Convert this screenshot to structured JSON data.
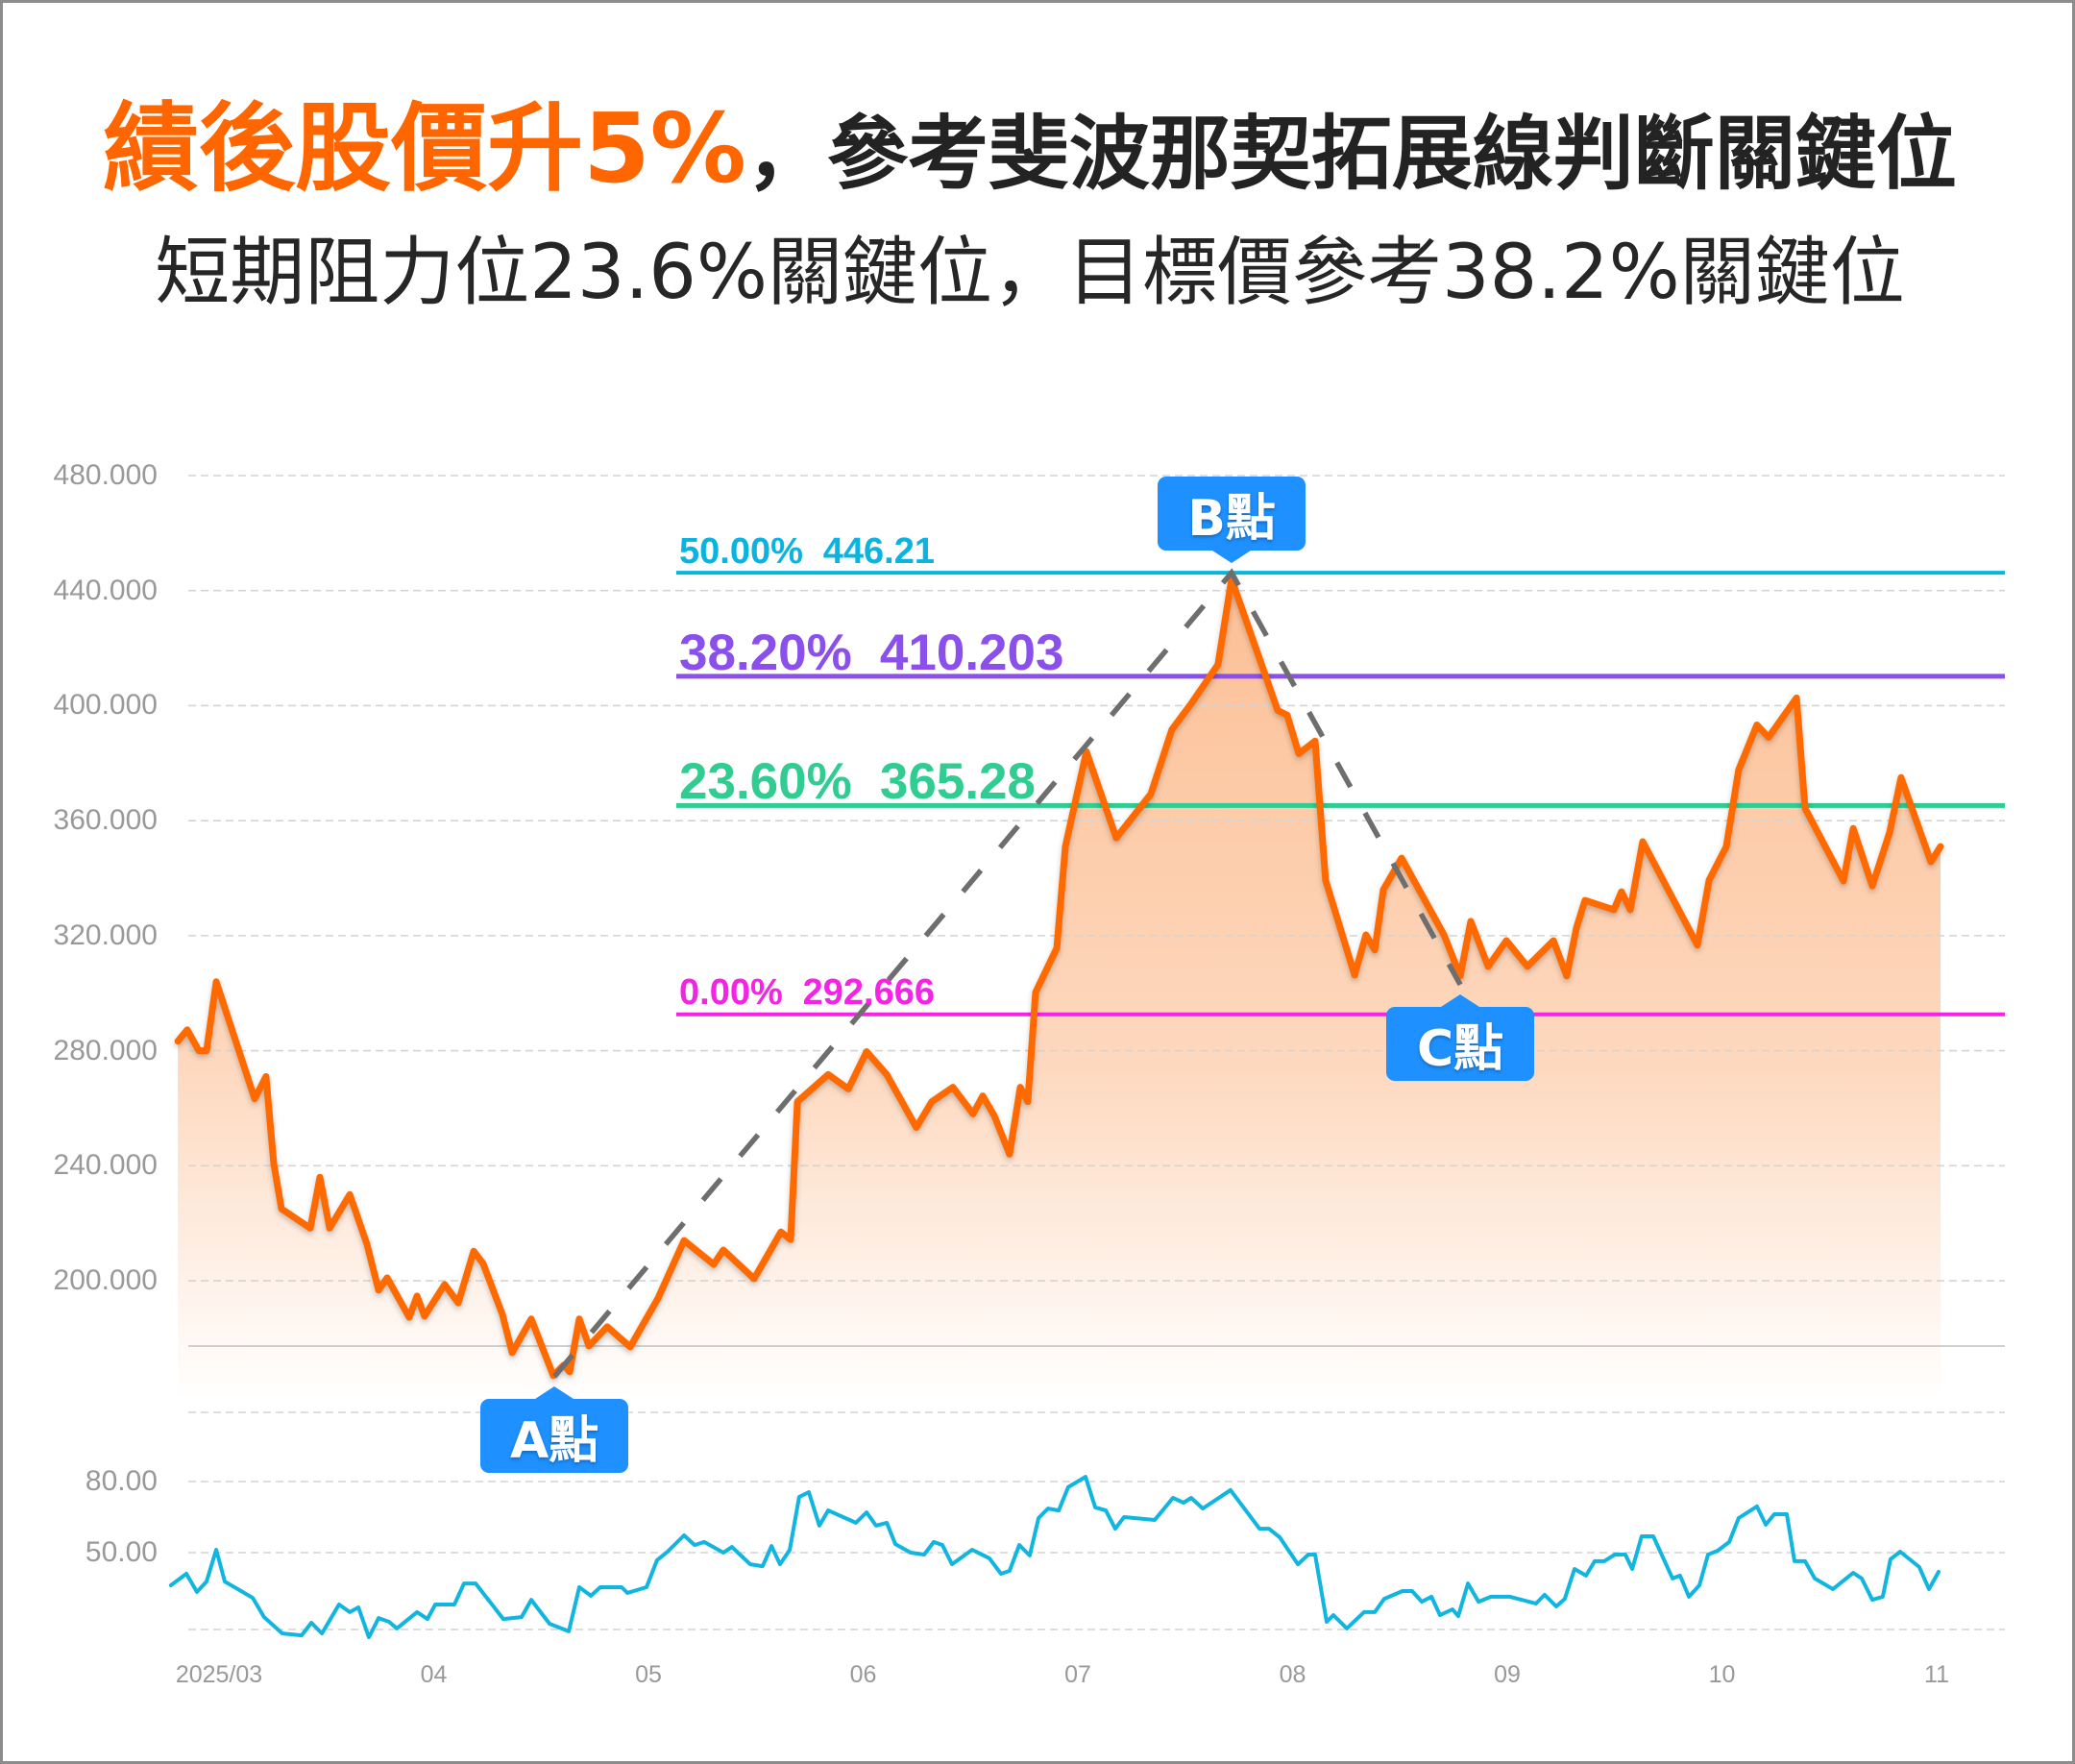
{
  "header": {
    "headline_accent": "績後股價升5%",
    "headline_main": "，參考斐波那契拓展線判斷關鍵位",
    "subheadline": "短期阻力位23.6%關鍵位，目標價參考38.2%關鍵位"
  },
  "colors": {
    "accent": "#FF6600",
    "text": "#232323",
    "area_fill": "#FA8A3C",
    "marker_bg": "#1E90FF",
    "marker_text": "#FFFFFF",
    "grid": "#D4D4D4",
    "axis_text": "#999999"
  },
  "chart_data": {
    "type": "line",
    "title": "績後股價升5%，參考斐波那契拓展線判斷關鍵位",
    "subtitle": "短期阻力位23.6%關鍵位，目標價參考38.2%關鍵位",
    "xlabel": "",
    "ylabel": "",
    "grid": true,
    "legend": "none",
    "ylim": [
      162,
      480
    ],
    "x_axis": {
      "labels": [
        "2025/03",
        "04",
        "05",
        "06",
        "07",
        "08",
        "09",
        "10",
        "11"
      ],
      "positions": [
        0,
        1,
        2,
        3,
        4,
        5,
        6,
        7,
        8
      ]
    },
    "y_axis": {
      "labels": [
        "480.000",
        "440.000",
        "400.000",
        "360.000",
        "320.000",
        "280.000",
        "240.000",
        "200.000"
      ],
      "values": [
        480,
        440,
        400,
        360,
        320,
        280,
        240,
        200
      ]
    },
    "price_series": {
      "color": "#FF6A00",
      "points": [
        [
          -0.192,
          283.3
        ],
        [
          -0.148,
          287.3
        ],
        [
          -0.094,
          280.0
        ],
        [
          -0.058,
          280.0
        ],
        [
          -0.013,
          304.0
        ],
        [
          0.166,
          263.3
        ],
        [
          0.219,
          271.0
        ],
        [
          0.255,
          240.7
        ],
        [
          0.291,
          225.0
        ],
        [
          0.425,
          218.3
        ],
        [
          0.47,
          236.0
        ],
        [
          0.515,
          218.3
        ],
        [
          0.609,
          230.0
        ],
        [
          0.689,
          212.7
        ],
        [
          0.743,
          196.7
        ],
        [
          0.783,
          201.0
        ],
        [
          0.886,
          187.3
        ],
        [
          0.922,
          194.7
        ],
        [
          0.957,
          187.7
        ],
        [
          1.051,
          198.7
        ],
        [
          1.114,
          192.3
        ],
        [
          1.186,
          210.3
        ],
        [
          1.23,
          206.0
        ],
        [
          1.32,
          188.3
        ],
        [
          1.365,
          175.0
        ],
        [
          1.454,
          186.7
        ],
        [
          1.557,
          167.0
        ],
        [
          1.606,
          170.7
        ],
        [
          1.633,
          168.3
        ],
        [
          1.678,
          186.7
        ],
        [
          1.723,
          177.3
        ],
        [
          1.808,
          184.0
        ],
        [
          1.915,
          177.0
        ],
        [
          2.045,
          194.0
        ],
        [
          2.166,
          214.0
        ],
        [
          2.304,
          205.7
        ],
        [
          2.349,
          210.7
        ],
        [
          2.492,
          200.7
        ],
        [
          2.617,
          217.0
        ],
        [
          2.662,
          214.3
        ],
        [
          2.694,
          262.3
        ],
        [
          2.837,
          271.7
        ],
        [
          2.931,
          266.7
        ],
        [
          3.016,
          279.7
        ],
        [
          3.11,
          271.7
        ],
        [
          3.248,
          253.3
        ],
        [
          3.32,
          262.3
        ],
        [
          3.418,
          267.3
        ],
        [
          3.512,
          258.0
        ],
        [
          3.557,
          264.3
        ],
        [
          3.611,
          257.3
        ],
        [
          3.682,
          244.0
        ],
        [
          3.732,
          267.3
        ],
        [
          3.767,
          262.3
        ],
        [
          3.803,
          300.3
        ],
        [
          3.902,
          315.7
        ],
        [
          3.942,
          351.0
        ],
        [
          4.04,
          384.0
        ],
        [
          4.179,
          354.0
        ],
        [
          4.34,
          369.3
        ],
        [
          4.438,
          391.7
        ],
        [
          4.528,
          400.7
        ],
        [
          4.653,
          414.3
        ],
        [
          4.716,
          444.0
        ],
        [
          4.931,
          398.3
        ],
        [
          4.975,
          396.7
        ],
        [
          5.029,
          383.3
        ],
        [
          5.105,
          387.7
        ],
        [
          5.154,
          339.3
        ],
        [
          5.289,
          306.3
        ],
        [
          5.342,
          320.3
        ],
        [
          5.383,
          315.0
        ],
        [
          5.423,
          336.0
        ],
        [
          5.508,
          347.0
        ],
        [
          5.705,
          320.3
        ],
        [
          5.781,
          306.0
        ],
        [
          5.83,
          325.0
        ],
        [
          5.911,
          309.3
        ],
        [
          5.996,
          318.3
        ],
        [
          6.094,
          309.3
        ],
        [
          6.215,
          318.3
        ],
        [
          6.277,
          306.0
        ],
        [
          6.322,
          322.7
        ],
        [
          6.362,
          332.3
        ],
        [
          6.497,
          329.0
        ],
        [
          6.532,
          335.3
        ],
        [
          6.573,
          329.0
        ],
        [
          6.631,
          352.7
        ],
        [
          6.886,
          316.7
        ],
        [
          6.94,
          339.3
        ],
        [
          7.02,
          351.0
        ],
        [
          7.078,
          377.7
        ],
        [
          7.163,
          393.3
        ],
        [
          7.217,
          389.0
        ],
        [
          7.347,
          402.7
        ],
        [
          7.387,
          364.3
        ],
        [
          7.566,
          339.0
        ],
        [
          7.611,
          357.3
        ],
        [
          7.7,
          337.3
        ],
        [
          7.781,
          356.0
        ],
        [
          7.834,
          375.0
        ],
        [
          7.973,
          345.7
        ],
        [
          8.018,
          351.0
        ]
      ]
    },
    "indicator_series": {
      "color": "#10B5E0",
      "y_axis": {
        "labels": [
          "80.00",
          "50.00"
        ],
        "values": [
          80,
          50
        ]
      },
      "points": [
        [
          -0.224,
          36.2
        ],
        [
          -0.152,
          41.1
        ],
        [
          -0.103,
          33.4
        ],
        [
          -0.058,
          37.8
        ],
        [
          -0.013,
          51.2
        ],
        [
          0.027,
          37.8
        ],
        [
          0.157,
          30.9
        ],
        [
          0.21,
          22.8
        ],
        [
          0.295,
          15.9
        ],
        [
          0.385,
          15.1
        ],
        [
          0.43,
          20.4
        ],
        [
          0.479,
          15.9
        ],
        [
          0.559,
          28.1
        ],
        [
          0.609,
          24.9
        ],
        [
          0.649,
          26.9
        ],
        [
          0.698,
          14.3
        ],
        [
          0.743,
          22.4
        ],
        [
          0.792,
          20.8
        ],
        [
          0.828,
          18.0
        ],
        [
          0.922,
          24.9
        ],
        [
          0.971,
          22.0
        ],
        [
          1.007,
          28.1
        ],
        [
          1.096,
          28.1
        ],
        [
          1.141,
          37.0
        ],
        [
          1.195,
          37.0
        ],
        [
          1.324,
          22.0
        ],
        [
          1.409,
          22.8
        ],
        [
          1.454,
          30.1
        ],
        [
          1.539,
          20.0
        ],
        [
          1.629,
          16.8
        ],
        [
          1.678,
          35.4
        ],
        [
          1.732,
          31.8
        ],
        [
          1.776,
          35.4
        ],
        [
          1.875,
          35.4
        ],
        [
          1.902,
          33.0
        ],
        [
          1.991,
          35.4
        ],
        [
          2.04,
          46.8
        ],
        [
          2.089,
          50.4
        ],
        [
          2.166,
          57.3
        ],
        [
          2.215,
          53.2
        ],
        [
          2.26,
          54.5
        ],
        [
          2.349,
          50.0
        ],
        [
          2.389,
          52.4
        ],
        [
          2.474,
          45.1
        ],
        [
          2.532,
          44.3
        ],
        [
          2.573,
          52.8
        ],
        [
          2.613,
          45.1
        ],
        [
          2.658,
          51.2
        ],
        [
          2.702,
          73.5
        ],
        [
          2.747,
          75.5
        ],
        [
          2.796,
          61.4
        ],
        [
          2.837,
          67.8
        ],
        [
          2.966,
          62.6
        ],
        [
          3.016,
          67.0
        ],
        [
          3.06,
          61.4
        ],
        [
          3.11,
          62.6
        ],
        [
          3.15,
          53.6
        ],
        [
          3.221,
          50.0
        ],
        [
          3.284,
          49.2
        ],
        [
          3.329,
          54.5
        ],
        [
          3.369,
          53.2
        ],
        [
          3.414,
          45.1
        ],
        [
          3.508,
          51.2
        ],
        [
          3.588,
          47.6
        ],
        [
          3.642,
          41.1
        ],
        [
          3.682,
          42.3
        ],
        [
          3.727,
          53.2
        ],
        [
          3.776,
          48.8
        ],
        [
          3.817,
          64.6
        ],
        [
          3.861,
          68.6
        ],
        [
          3.911,
          67.8
        ],
        [
          3.955,
          77.6
        ],
        [
          4.036,
          82.0
        ],
        [
          4.081,
          69.1
        ],
        [
          4.13,
          67.8
        ],
        [
          4.174,
          60.1
        ],
        [
          4.215,
          65.0
        ],
        [
          4.358,
          63.8
        ],
        [
          4.443,
          73.1
        ],
        [
          4.492,
          71.1
        ],
        [
          4.528,
          73.1
        ],
        [
          4.582,
          68.6
        ],
        [
          4.711,
          76.4
        ],
        [
          4.846,
          60.1
        ],
        [
          4.89,
          60.1
        ],
        [
          4.94,
          56.5
        ],
        [
          5.025,
          45.1
        ],
        [
          5.074,
          49.2
        ],
        [
          5.105,
          49.2
        ],
        [
          5.159,
          20.8
        ],
        [
          5.19,
          23.6
        ],
        [
          5.253,
          18.0
        ],
        [
          5.333,
          24.9
        ],
        [
          5.383,
          24.9
        ],
        [
          5.427,
          30.5
        ],
        [
          5.512,
          33.8
        ],
        [
          5.557,
          33.8
        ],
        [
          5.602,
          29.3
        ],
        [
          5.647,
          31.4
        ],
        [
          5.687,
          23.6
        ],
        [
          5.745,
          26.1
        ],
        [
          5.772,
          23.2
        ],
        [
          5.817,
          37.0
        ],
        [
          5.866,
          29.3
        ],
        [
          5.924,
          31.4
        ],
        [
          6.013,
          31.4
        ],
        [
          6.134,
          28.5
        ],
        [
          6.174,
          32.2
        ],
        [
          6.228,
          27.3
        ],
        [
          6.268,
          30.5
        ],
        [
          6.313,
          43.1
        ],
        [
          6.367,
          40.3
        ],
        [
          6.407,
          46.4
        ],
        [
          6.452,
          46.4
        ],
        [
          6.501,
          49.2
        ],
        [
          6.55,
          49.2
        ],
        [
          6.582,
          43.1
        ],
        [
          6.626,
          56.9
        ],
        [
          6.68,
          56.9
        ],
        [
          6.77,
          39.1
        ],
        [
          6.805,
          40.3
        ],
        [
          6.846,
          31.4
        ],
        [
          6.895,
          36.2
        ],
        [
          6.935,
          49.2
        ],
        [
          6.98,
          50.8
        ],
        [
          7.034,
          54.5
        ],
        [
          7.078,
          64.6
        ],
        [
          7.163,
          69.5
        ],
        [
          7.204,
          61.8
        ],
        [
          7.244,
          66.2
        ],
        [
          7.302,
          66.2
        ],
        [
          7.338,
          46.4
        ],
        [
          7.387,
          46.4
        ],
        [
          7.432,
          39.1
        ],
        [
          7.517,
          34.6
        ],
        [
          7.611,
          41.5
        ],
        [
          7.651,
          39.1
        ],
        [
          7.7,
          30.1
        ],
        [
          7.749,
          31.4
        ],
        [
          7.785,
          47.2
        ],
        [
          7.83,
          50.4
        ],
        [
          7.919,
          43.9
        ],
        [
          7.964,
          34.6
        ],
        [
          8.009,
          41.9
        ]
      ]
    },
    "fib_levels": [
      {
        "ratio": "50.00%",
        "price": "446.21",
        "value": 446.21,
        "color": "#0BB4E0",
        "emphasis": false
      },
      {
        "ratio": "38.20%",
        "price": "410.203",
        "value": 410.203,
        "color": "#8B50EC",
        "emphasis": true
      },
      {
        "ratio": "23.60%",
        "price": "365.28",
        "value": 365.28,
        "color": "#30CC91",
        "emphasis": true
      },
      {
        "ratio": "0.00%",
        "price": "292.666",
        "value": 292.666,
        "color": "#F423E6",
        "emphasis": false
      }
    ],
    "markers": [
      {
        "label": "A點",
        "x": 1.562,
        "value": 166.7,
        "placement": "below"
      },
      {
        "label": "B點",
        "x": 4.716,
        "value": 446.21,
        "placement": "above"
      },
      {
        "label": "C點",
        "x": 5.781,
        "value": 303.0,
        "placement": "below"
      }
    ],
    "abc_line": {
      "through": [
        "A點",
        "B點",
        "C點"
      ],
      "color": "#6E6E6E",
      "style": "dashed"
    }
  }
}
